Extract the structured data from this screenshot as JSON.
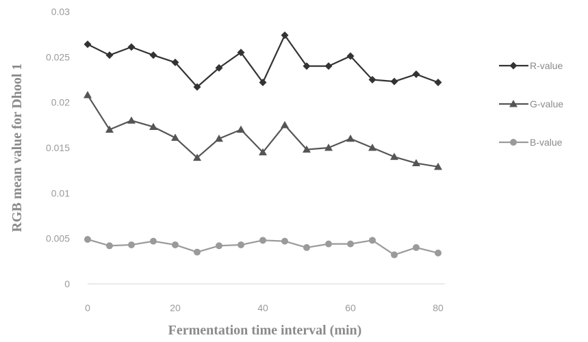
{
  "chart_data": {
    "type": "line",
    "x": [
      0,
      5,
      10,
      15,
      20,
      25,
      30,
      35,
      40,
      45,
      50,
      55,
      60,
      65,
      70,
      75,
      80
    ],
    "series": [
      {
        "name": "R-value",
        "color": "#333333",
        "marker": "diamond",
        "values": [
          0.0264,
          0.0252,
          0.0261,
          0.0252,
          0.0244,
          0.0217,
          0.0238,
          0.0255,
          0.0222,
          0.0274,
          0.024,
          0.024,
          0.0251,
          0.0225,
          0.0223,
          0.0231,
          0.0222
        ]
      },
      {
        "name": "G-value",
        "color": "#555555",
        "marker": "triangle",
        "values": [
          0.0208,
          0.017,
          0.018,
          0.0173,
          0.0161,
          0.0139,
          0.016,
          0.017,
          0.0145,
          0.0175,
          0.0148,
          0.015,
          0.016,
          0.015,
          0.014,
          0.0133,
          0.0129
        ]
      },
      {
        "name": "B-value",
        "color": "#9a9a9a",
        "marker": "circle",
        "values": [
          0.0049,
          0.0042,
          0.0043,
          0.0047,
          0.0043,
          0.0035,
          0.0042,
          0.0043,
          0.0048,
          0.0047,
          0.004,
          0.0044,
          0.0044,
          0.0048,
          0.0032,
          0.004,
          0.0034
        ]
      }
    ],
    "xlabel": "Fermentation time interval (min)",
    "ylabel": "RGB mean value for Dhool 1",
    "xlim": [
      0,
      80
    ],
    "ylim": [
      0,
      0.03
    ],
    "x_ticks": [
      "0",
      "20",
      "40",
      "60",
      "80"
    ],
    "x_tick_values": [
      0,
      20,
      40,
      60,
      80
    ],
    "y_ticks": [
      "0",
      "0.005",
      "0.01",
      "0.015",
      "0.02",
      "0.025",
      "0.03"
    ],
    "y_tick_values": [
      0,
      0.005,
      0.01,
      0.015,
      0.02,
      0.025,
      0.03
    ],
    "grid": false,
    "legend_position": "right"
  }
}
